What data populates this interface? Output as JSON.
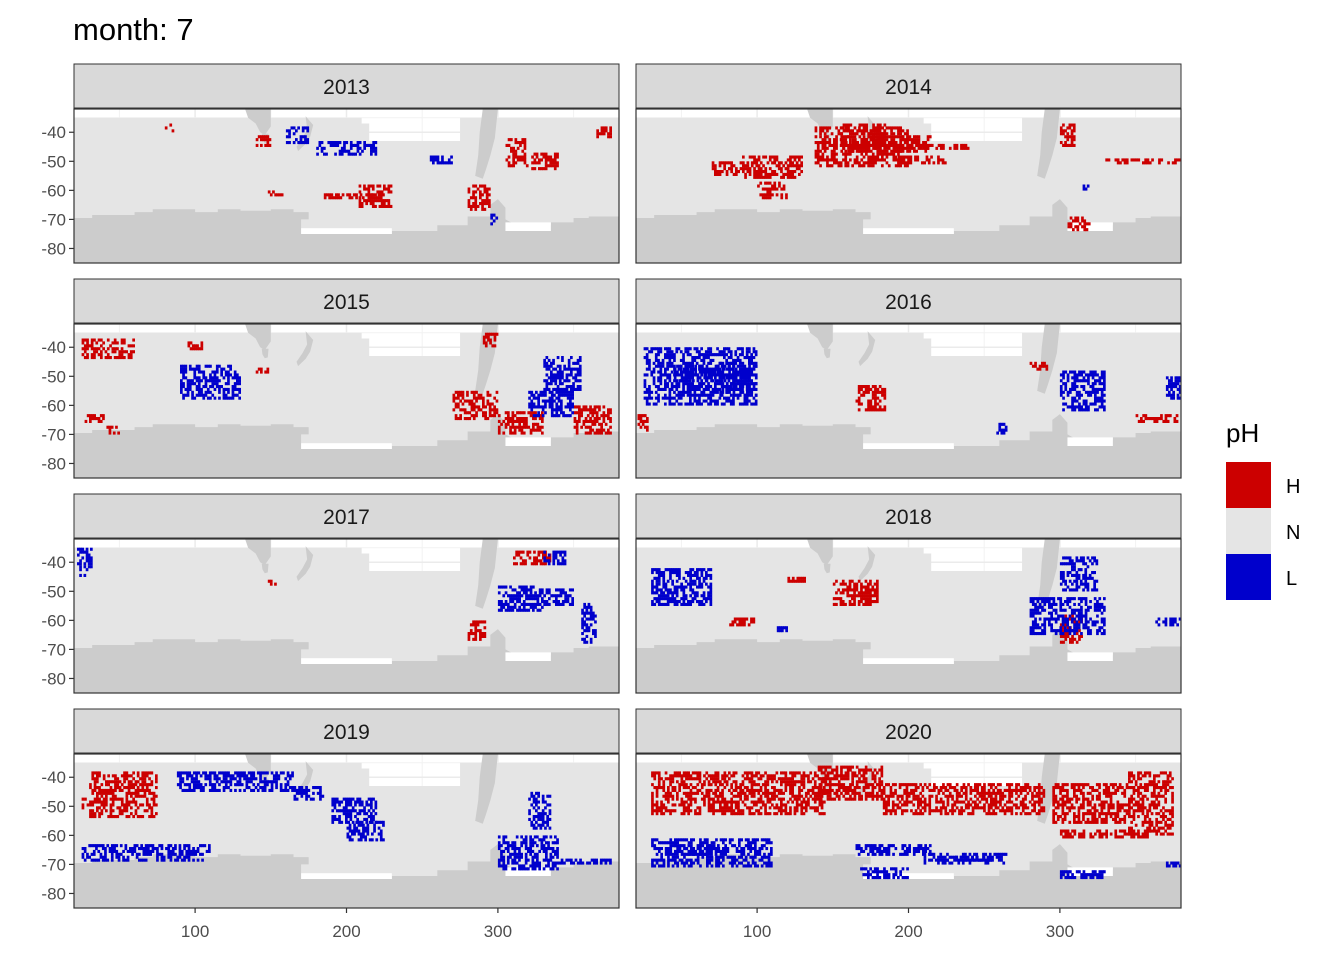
{
  "chart_data": {
    "type": "heatmap",
    "title": "month: 7",
    "xlabel": "",
    "ylabel": "",
    "xlim": [
      20,
      380
    ],
    "ylim": [
      -85,
      -32
    ],
    "x_ticks": [
      100,
      200,
      300
    ],
    "y_ticks": [
      -40,
      -50,
      -60,
      -70,
      -80
    ],
    "x_tick_labels": [
      "100",
      "200",
      "300"
    ],
    "y_tick_labels": [
      "-40",
      "-50",
      "-60",
      "-70",
      "-80"
    ],
    "legend": {
      "title": "pH",
      "position": "right",
      "entries": [
        {
          "key": "H",
          "label": "H",
          "color": "#cc0000"
        },
        {
          "key": "N",
          "label": "N",
          "color": "#e5e5e5"
        },
        {
          "key": "L",
          "label": "L",
          "color": "#0000cc"
        }
      ]
    },
    "land_color": "#cccccc",
    "strip_fill": "#d9d9d9",
    "panels": [
      {
        "label": "2013",
        "regions": [
          {
            "category": "H",
            "x": [
              80,
              86
            ],
            "y": [
              -40,
              -37
            ]
          },
          {
            "category": "H",
            "x": [
              140,
              150
            ],
            "y": [
              -45,
              -41
            ]
          },
          {
            "category": "H",
            "x": [
              148,
              158
            ],
            "y": [
              -62,
              -60
            ]
          },
          {
            "category": "H",
            "x": [
              185,
              225
            ],
            "y": [
              -63,
              -61
            ]
          },
          {
            "category": "H",
            "x": [
              208,
              230
            ],
            "y": [
              -66,
              -58
            ]
          },
          {
            "category": "H",
            "x": [
              305,
              320
            ],
            "y": [
              -52,
              -42
            ]
          },
          {
            "category": "H",
            "x": [
              322,
              340
            ],
            "y": [
              -53,
              -47
            ]
          },
          {
            "category": "H",
            "x": [
              365,
              375
            ],
            "y": [
              -42,
              -38
            ]
          },
          {
            "category": "H",
            "x": [
              280,
              295
            ],
            "y": [
              -67,
              -58
            ]
          },
          {
            "category": "L",
            "x": [
              160,
              175
            ],
            "y": [
              -44,
              -38
            ]
          },
          {
            "category": "L",
            "x": [
              180,
              220
            ],
            "y": [
              -48,
              -43
            ]
          },
          {
            "category": "L",
            "x": [
              255,
              270
            ],
            "y": [
              -51,
              -48
            ]
          },
          {
            "category": "L",
            "x": [
              295,
              300
            ],
            "y": [
              -72,
              -68
            ]
          }
        ]
      },
      {
        "label": "2014",
        "regions": [
          {
            "category": "H",
            "x": [
              138,
              200
            ],
            "y": [
              -52,
              -38
            ]
          },
          {
            "category": "H",
            "x": [
              155,
              185
            ],
            "y": [
              -47,
              -37
            ]
          },
          {
            "category": "H",
            "x": [
              170,
              215
            ],
            "y": [
              -47,
              -41
            ]
          },
          {
            "category": "H",
            "x": [
              200,
              240
            ],
            "y": [
              -46,
              -44
            ]
          },
          {
            "category": "H",
            "x": [
              190,
              225
            ],
            "y": [
              -51,
              -48
            ]
          },
          {
            "category": "H",
            "x": [
              90,
              130
            ],
            "y": [
              -56,
              -48
            ]
          },
          {
            "category": "H",
            "x": [
              100,
              120
            ],
            "y": [
              -63,
              -57
            ]
          },
          {
            "category": "H",
            "x": [
              70,
              90
            ],
            "y": [
              -55,
              -50
            ]
          },
          {
            "category": "H",
            "x": [
              300,
              310
            ],
            "y": [
              -45,
              -37
            ]
          },
          {
            "category": "H",
            "x": [
              330,
              380
            ],
            "y": [
              -51,
              -49
            ]
          },
          {
            "category": "H",
            "x": [
              305,
              320
            ],
            "y": [
              -74,
              -69
            ]
          },
          {
            "category": "L",
            "x": [
              315,
              322
            ],
            "y": [
              -60,
              -58
            ]
          }
        ]
      },
      {
        "label": "2015",
        "regions": [
          {
            "category": "H",
            "x": [
              25,
              60
            ],
            "y": [
              -44,
              -37
            ]
          },
          {
            "category": "H",
            "x": [
              27,
              40
            ],
            "y": [
              -66,
              -63
            ]
          },
          {
            "category": "H",
            "x": [
              40,
              50
            ],
            "y": [
              -70,
              -67
            ]
          },
          {
            "category": "H",
            "x": [
              270,
              300
            ],
            "y": [
              -65,
              -55
            ]
          },
          {
            "category": "H",
            "x": [
              300,
              330
            ],
            "y": [
              -70,
              -62
            ]
          },
          {
            "category": "H",
            "x": [
              290,
              300
            ],
            "y": [
              -40,
              -35
            ]
          },
          {
            "category": "H",
            "x": [
              350,
              375
            ],
            "y": [
              -70,
              -60
            ]
          },
          {
            "category": "H",
            "x": [
              140,
              150
            ],
            "y": [
              -49,
              -47
            ]
          },
          {
            "category": "H",
            "x": [
              95,
              105
            ],
            "y": [
              -41,
              -38
            ]
          },
          {
            "category": "L",
            "x": [
              90,
              130
            ],
            "y": [
              -58,
              -46
            ]
          },
          {
            "category": "L",
            "x": [
              330,
              355
            ],
            "y": [
              -55,
              -43
            ]
          },
          {
            "category": "L",
            "x": [
              320,
              350
            ],
            "y": [
              -64,
              -55
            ]
          }
        ]
      },
      {
        "label": "2016",
        "regions": [
          {
            "category": "L",
            "x": [
              25,
              100
            ],
            "y": [
              -60,
              -40
            ]
          },
          {
            "category": "L",
            "x": [
              45,
              75
            ],
            "y": [
              -52,
              -46
            ]
          },
          {
            "category": "L",
            "x": [
              75,
              100
            ],
            "y": [
              -57,
              -45
            ]
          },
          {
            "category": "L",
            "x": [
              300,
              330
            ],
            "y": [
              -62,
              -48
            ]
          },
          {
            "category": "L",
            "x": [
              370,
              380
            ],
            "y": [
              -58,
              -50
            ]
          },
          {
            "category": "L",
            "x": [
              258,
              265
            ],
            "y": [
              -70,
              -66
            ]
          },
          {
            "category": "H",
            "x": [
              21,
              28
            ],
            "y": [
              -69,
              -63
            ]
          },
          {
            "category": "H",
            "x": [
              165,
              185
            ],
            "y": [
              -62,
              -53
            ]
          },
          {
            "category": "H",
            "x": [
              350,
              378
            ],
            "y": [
              -66,
              -63
            ]
          },
          {
            "category": "H",
            "x": [
              280,
              292
            ],
            "y": [
              -48,
              -45
            ]
          }
        ]
      },
      {
        "label": "2017",
        "regions": [
          {
            "category": "H",
            "x": [
              310,
              335
            ],
            "y": [
              -41,
              -36
            ]
          },
          {
            "category": "H",
            "x": [
              148,
              155
            ],
            "y": [
              -48,
              -46
            ]
          },
          {
            "category": "H",
            "x": [
              280,
              292
            ],
            "y": [
              -67,
              -60
            ]
          },
          {
            "category": "L",
            "x": [
              330,
              345
            ],
            "y": [
              -41,
              -36
            ]
          },
          {
            "category": "L",
            "x": [
              330,
              350
            ],
            "y": [
              -55,
              -49
            ]
          },
          {
            "category": "L",
            "x": [
              355,
              365
            ],
            "y": [
              -68,
              -54
            ]
          },
          {
            "category": "L",
            "x": [
              300,
              330
            ],
            "y": [
              -57,
              -48
            ]
          },
          {
            "category": "L",
            "x": [
              22,
              32
            ],
            "y": [
              -45,
              -35
            ]
          }
        ]
      },
      {
        "label": "2018",
        "regions": [
          {
            "category": "H",
            "x": [
              150,
              180
            ],
            "y": [
              -55,
              -46
            ]
          },
          {
            "category": "H",
            "x": [
              80,
              100
            ],
            "y": [
              -62,
              -59
            ]
          },
          {
            "category": "H",
            "x": [
              300,
              315
            ],
            "y": [
              -68,
              -58
            ]
          },
          {
            "category": "H",
            "x": [
              120,
              132
            ],
            "y": [
              -47,
              -45
            ]
          },
          {
            "category": "L",
            "x": [
              30,
              70
            ],
            "y": [
              -55,
              -42
            ]
          },
          {
            "category": "L",
            "x": [
              280,
              330
            ],
            "y": [
              -65,
              -52
            ]
          },
          {
            "category": "L",
            "x": [
              300,
              325
            ],
            "y": [
              -50,
              -38
            ]
          },
          {
            "category": "L",
            "x": [
              363,
              380
            ],
            "y": [
              -62,
              -59
            ]
          },
          {
            "category": "L",
            "x": [
              113,
              120
            ],
            "y": [
              -64,
              -62
            ]
          }
        ]
      },
      {
        "label": "2019",
        "regions": [
          {
            "category": "H",
            "x": [
              30,
              75
            ],
            "y": [
              -54,
              -38
            ]
          },
          {
            "category": "H",
            "x": [
              25,
              30
            ],
            "y": [
              -51,
              -47
            ]
          },
          {
            "category": "L",
            "x": [
              88,
              165
            ],
            "y": [
              -45,
              -38
            ]
          },
          {
            "category": "L",
            "x": [
              190,
              220
            ],
            "y": [
              -56,
              -47
            ]
          },
          {
            "category": "L",
            "x": [
              200,
              225
            ],
            "y": [
              -62,
              -55
            ]
          },
          {
            "category": "L",
            "x": [
              25,
              110
            ],
            "y": [
              -69,
              -63
            ]
          },
          {
            "category": "L",
            "x": [
              300,
              340
            ],
            "y": [
              -72,
              -60
            ]
          },
          {
            "category": "L",
            "x": [
              340,
              375
            ],
            "y": [
              -70,
              -68
            ]
          },
          {
            "category": "L",
            "x": [
              320,
              335
            ],
            "y": [
              -58,
              -45
            ]
          },
          {
            "category": "L",
            "x": [
              165,
              185
            ],
            "y": [
              -48,
              -43
            ]
          }
        ]
      },
      {
        "label": "2020",
        "regions": [
          {
            "category": "H",
            "x": [
              140,
              183
            ],
            "y": [
              -48,
              -36
            ]
          },
          {
            "category": "H",
            "x": [
              30,
              145
            ],
            "y": [
              -53,
              -38
            ]
          },
          {
            "category": "H",
            "x": [
              183,
              290
            ],
            "y": [
              -53,
              -42
            ]
          },
          {
            "category": "H",
            "x": [
              295,
              345
            ],
            "y": [
              -56,
              -42
            ]
          },
          {
            "category": "H",
            "x": [
              345,
              375
            ],
            "y": [
              -60,
              -38
            ]
          },
          {
            "category": "H",
            "x": [
              300,
              360
            ],
            "y": [
              -61,
              -58
            ]
          },
          {
            "category": "L",
            "x": [
              30,
              110
            ],
            "y": [
              -71,
              -61
            ]
          },
          {
            "category": "L",
            "x": [
              45,
              75
            ],
            "y": [
              -67,
              -63
            ]
          },
          {
            "category": "L",
            "x": [
              165,
              215
            ],
            "y": [
              -67,
              -63
            ]
          },
          {
            "category": "L",
            "x": [
              210,
              265
            ],
            "y": [
              -70,
              -66
            ]
          },
          {
            "category": "L",
            "x": [
              225,
              255
            ],
            "y": [
              -69,
              -67
            ]
          },
          {
            "category": "L",
            "x": [
              168,
              200
            ],
            "y": [
              -75,
              -71
            ]
          },
          {
            "category": "L",
            "x": [
              370,
              380
            ],
            "y": [
              -71,
              -69
            ]
          },
          {
            "category": "L",
            "x": [
              300,
              330
            ],
            "y": [
              -75,
              -72
            ]
          }
        ]
      }
    ]
  }
}
